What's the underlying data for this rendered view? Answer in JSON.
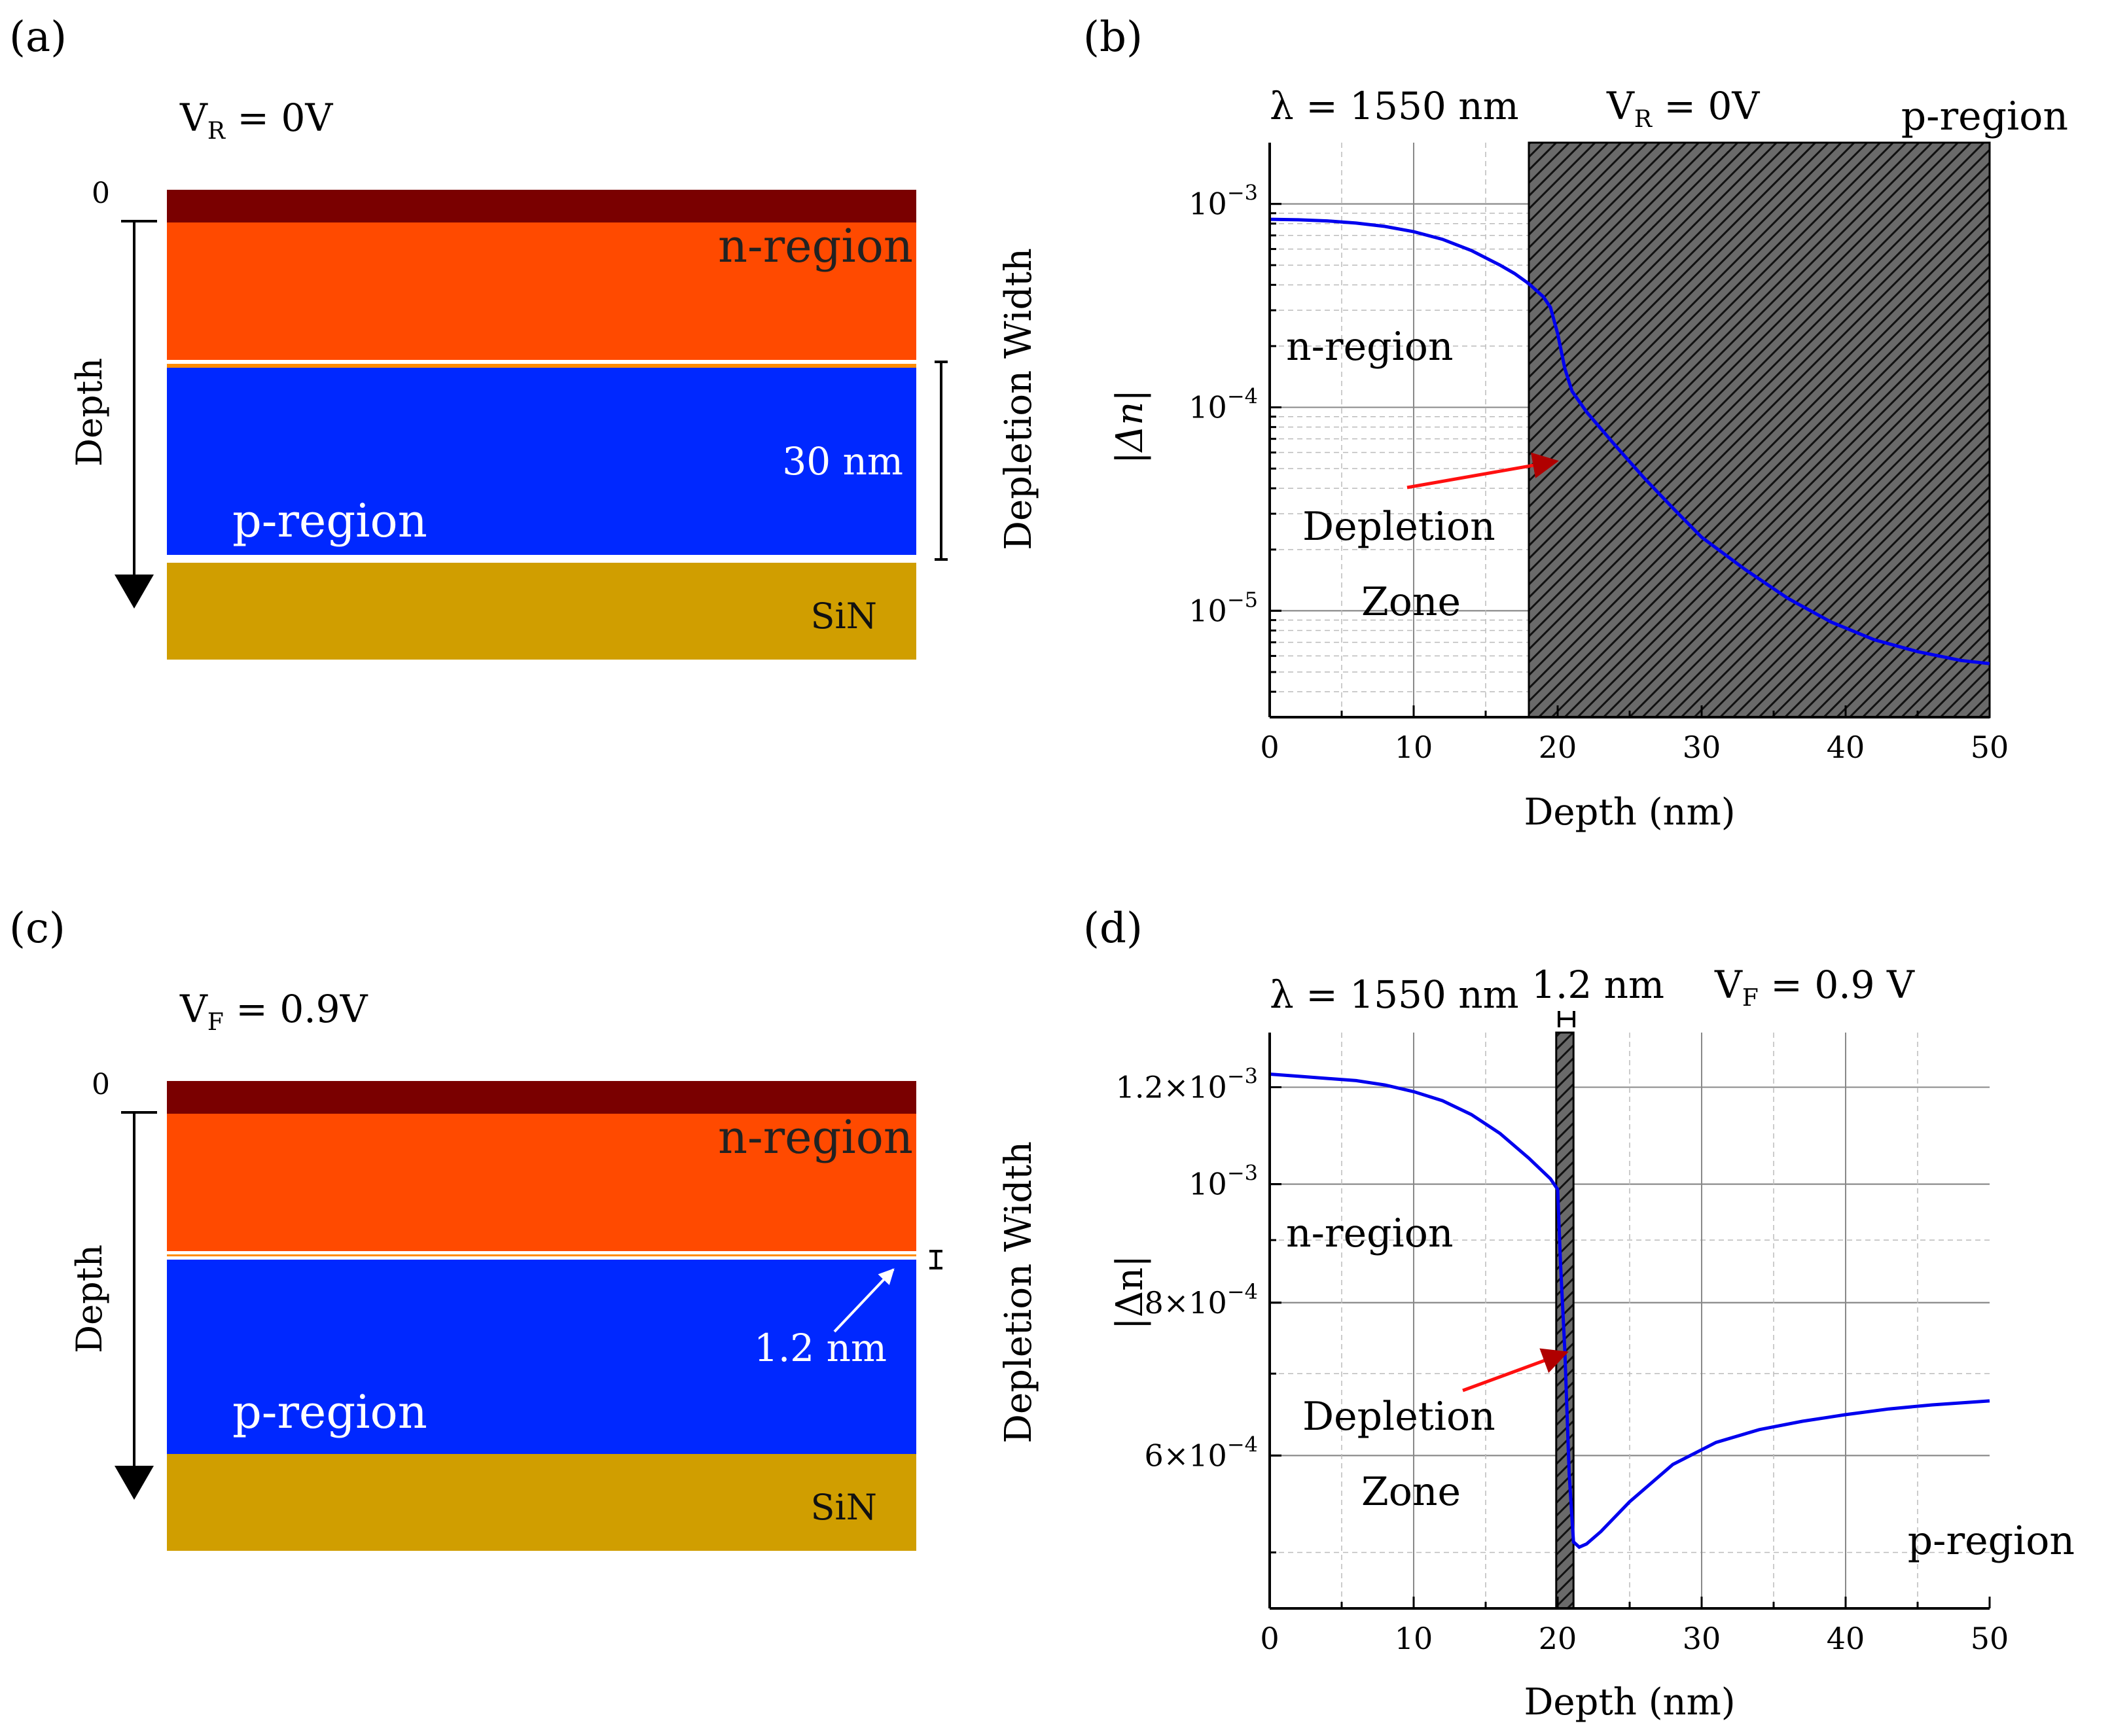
{
  "panels": {
    "a": {
      "label": "(a)",
      "voltage": "V",
      "voltage_sub": "R",
      "voltage_val": " = 0V",
      "zero": "0",
      "depth_label": "Depth",
      "n_region": "n-region",
      "p_region": "p-region",
      "sin": "SiN",
      "width_label": "30 nm",
      "depletion_width": "Depletion Width"
    },
    "c": {
      "label": "(c)",
      "voltage": "V",
      "voltage_sub": "F",
      "voltage_val": " = 0.9V",
      "zero": "0",
      "depth_label": "Depth",
      "n_region": "n-region",
      "p_region": "p-region",
      "sin": "SiN",
      "width_label": "1.2 nm",
      "depletion_width": "Depletion Width"
    }
  },
  "colors": {
    "top_layer": "#7a0000",
    "n_layer": "#ff4a00",
    "p_layer": "#0028ff",
    "sin_layer": "#d09e00",
    "curve": "#0000ee",
    "arrow": "#e00000"
  },
  "chart_data": [
    {
      "type": "line",
      "panel": "(b)",
      "title_left": "λ = 1550 nm",
      "title_mid": "V",
      "title_mid_sub": "R",
      "title_mid_val": " = 0V",
      "p_region_label": "p-region",
      "n_region_label": "n-region",
      "depletion_label_1": "Depletion",
      "depletion_label_2": "Zone",
      "xlabel": "Depth (nm)",
      "ylabel": "|Δn|",
      "yscale": "log",
      "xlim": [
        0,
        50
      ],
      "ylim": [
        3e-06,
        0.002
      ],
      "xticks": [
        0,
        10,
        20,
        30,
        40,
        50
      ],
      "yticks": [
        {
          "value": 0.001,
          "base": "10",
          "exp": "−3"
        },
        {
          "value": 0.0001,
          "base": "10",
          "exp": "−4"
        },
        {
          "value": 1e-05,
          "base": "10",
          "exp": "−5"
        }
      ],
      "depletion_zone": [
        18,
        50
      ],
      "series": [
        {
          "name": "|Δn|",
          "x": [
            0,
            2,
            4,
            6,
            8,
            10,
            12,
            14,
            16,
            17,
            18,
            19,
            19.5,
            20,
            20.5,
            21,
            22,
            24,
            26,
            28,
            30,
            33,
            36,
            39,
            42,
            45,
            48,
            50
          ],
          "y": [
            0.00084,
            0.000835,
            0.000825,
            0.000805,
            0.000775,
            0.00073,
            0.00067,
            0.00059,
            0.0005,
            0.000455,
            0.000405,
            0.00035,
            0.00031,
            0.00023,
            0.000155,
            0.00012,
            9.5e-05,
            6.5e-05,
            4.5e-05,
            3.2e-05,
            2.3e-05,
            1.6e-05,
            1.15e-05,
            8.8e-06,
            7.2e-06,
            6.3e-06,
            5.7e-06,
            5.5e-06
          ]
        }
      ]
    },
    {
      "type": "line",
      "panel": "(d)",
      "title_left": "λ = 1550 nm",
      "title_width": "1.2 nm",
      "title_mid": "V",
      "title_mid_sub": "F",
      "title_mid_val": " = 0.9 V",
      "p_region_label": "p-region",
      "n_region_label": "n-region",
      "depletion_label_1": "Depletion",
      "depletion_label_2": "Zone",
      "xlabel": "Depth (nm)",
      "ylabel": "|Δn|",
      "yscale": "log",
      "xlim": [
        0,
        50
      ],
      "ylim": [
        0.00045,
        0.00133
      ],
      "xticks": [
        0,
        10,
        20,
        30,
        40,
        50
      ],
      "yticks": [
        {
          "value": 0.0012,
          "base": "1.2×10",
          "exp": "−3"
        },
        {
          "value": 0.001,
          "base": "10",
          "exp": "−3"
        },
        {
          "value": 0.0008,
          "base": "8×10",
          "exp": "−4"
        },
        {
          "value": 0.0006,
          "base": "6×10",
          "exp": "−4"
        }
      ],
      "depletion_zone": [
        19.9,
        21.1
      ],
      "series": [
        {
          "name": "|Δn|",
          "x": [
            0,
            2,
            4,
            6,
            8,
            10,
            12,
            14,
            16,
            18,
            19.5,
            20,
            20.2,
            20.5,
            20.8,
            21.1,
            21.5,
            22,
            23,
            25,
            28,
            31,
            34,
            37,
            40,
            43,
            46,
            50
          ],
          "y": [
            0.00123,
            0.001225,
            0.00122,
            0.001215,
            0.001205,
            0.00119,
            0.00117,
            0.00114,
            0.0011,
            0.00105,
            0.00101,
            0.00099,
            0.00086,
            0.00073,
            0.00058,
            0.00051,
            0.000505,
            0.000508,
            0.00052,
            0.00055,
            0.00059,
            0.000615,
            0.00063,
            0.00064,
            0.000648,
            0.000655,
            0.00066,
            0.000665
          ]
        }
      ]
    }
  ]
}
